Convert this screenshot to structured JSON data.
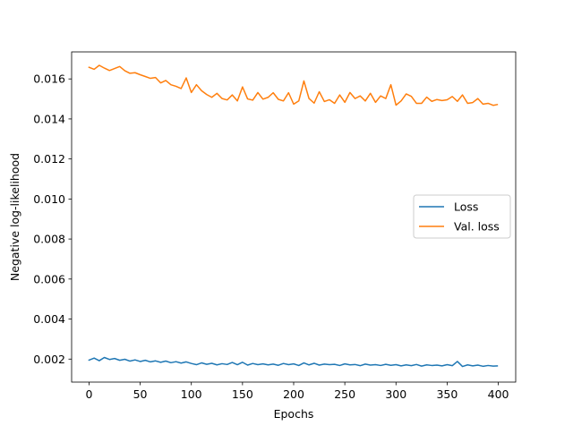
{
  "chart_data": {
    "type": "line",
    "title": "",
    "xlabel": "Epochs",
    "ylabel": "Negative log-likelihood",
    "xlim": [
      -17,
      417
    ],
    "ylim": [
      0.00085,
      0.01735
    ],
    "xticks": [
      0,
      50,
      100,
      150,
      200,
      250,
      300,
      350,
      400
    ],
    "xtick_labels": [
      "0",
      "50",
      "100",
      "150",
      "200",
      "250",
      "300",
      "350",
      "400"
    ],
    "yticks": [
      0.002,
      0.004,
      0.006,
      0.008,
      0.01,
      0.012,
      0.014,
      0.016
    ],
    "ytick_labels": [
      "0.002",
      "0.004",
      "0.006",
      "0.008",
      "0.010",
      "0.012",
      "0.014",
      "0.016"
    ],
    "grid": false,
    "legend_position": "center-right",
    "series": [
      {
        "name": "Loss",
        "color": "#1f77b4",
        "x": [
          0,
          5,
          10,
          15,
          20,
          25,
          30,
          35,
          40,
          45,
          50,
          55,
          60,
          65,
          70,
          75,
          80,
          85,
          90,
          95,
          100,
          105,
          110,
          115,
          120,
          125,
          130,
          135,
          140,
          145,
          150,
          155,
          160,
          165,
          170,
          175,
          180,
          185,
          190,
          195,
          200,
          205,
          210,
          215,
          220,
          225,
          230,
          235,
          240,
          245,
          250,
          255,
          260,
          265,
          270,
          275,
          280,
          285,
          290,
          295,
          300,
          305,
          310,
          315,
          320,
          325,
          330,
          335,
          340,
          345,
          350,
          355,
          360,
          365,
          370,
          375,
          380,
          385,
          390,
          395,
          399
        ],
        "y": [
          0.00195,
          0.00205,
          0.00192,
          0.00208,
          0.00198,
          0.00203,
          0.00194,
          0.00199,
          0.0019,
          0.00196,
          0.00188,
          0.00194,
          0.00186,
          0.00191,
          0.00184,
          0.0019,
          0.00182,
          0.00187,
          0.0018,
          0.00186,
          0.00178,
          0.00172,
          0.00181,
          0.00174,
          0.00179,
          0.00171,
          0.00177,
          0.00173,
          0.00183,
          0.00172,
          0.00184,
          0.0017,
          0.00178,
          0.00172,
          0.00176,
          0.00171,
          0.00175,
          0.00169,
          0.00178,
          0.00172,
          0.00176,
          0.00168,
          0.00181,
          0.00171,
          0.00179,
          0.0017,
          0.00175,
          0.00172,
          0.00174,
          0.00168,
          0.00176,
          0.00171,
          0.00173,
          0.00167,
          0.00175,
          0.0017,
          0.00172,
          0.00168,
          0.00174,
          0.00169,
          0.00172,
          0.00166,
          0.00171,
          0.00167,
          0.00173,
          0.00165,
          0.00171,
          0.00168,
          0.0017,
          0.00166,
          0.00172,
          0.00167,
          0.00188,
          0.00163,
          0.00171,
          0.00166,
          0.0017,
          0.00164,
          0.00168,
          0.00165,
          0.00166
        ]
      },
      {
        "name": "Val. loss",
        "color": "#ff7f0e",
        "x": [
          0,
          5,
          10,
          15,
          20,
          25,
          30,
          35,
          40,
          45,
          50,
          55,
          60,
          65,
          70,
          75,
          80,
          85,
          90,
          95,
          100,
          105,
          110,
          115,
          120,
          125,
          130,
          135,
          140,
          145,
          150,
          155,
          160,
          165,
          170,
          175,
          180,
          185,
          190,
          195,
          200,
          205,
          210,
          215,
          220,
          225,
          230,
          235,
          240,
          245,
          250,
          255,
          260,
          265,
          270,
          275,
          280,
          285,
          290,
          295,
          300,
          305,
          310,
          315,
          320,
          325,
          330,
          335,
          340,
          345,
          350,
          355,
          360,
          365,
          370,
          375,
          380,
          385,
          390,
          395,
          399
        ],
        "y": [
          0.01658,
          0.01648,
          0.01668,
          0.01654,
          0.01642,
          0.01652,
          0.01662,
          0.01641,
          0.01628,
          0.01631,
          0.01621,
          0.01612,
          0.01603,
          0.01607,
          0.0158,
          0.01592,
          0.01571,
          0.01563,
          0.01552,
          0.01605,
          0.01532,
          0.01571,
          0.01541,
          0.01522,
          0.01508,
          0.01528,
          0.01502,
          0.01495,
          0.0152,
          0.0149,
          0.0156,
          0.015,
          0.01494,
          0.01532,
          0.01499,
          0.01508,
          0.01531,
          0.01498,
          0.0149,
          0.01531,
          0.01474,
          0.0149,
          0.0159,
          0.01502,
          0.01479,
          0.01536,
          0.01487,
          0.01496,
          0.01478,
          0.0152,
          0.01483,
          0.01532,
          0.01502,
          0.01515,
          0.0149,
          0.01528,
          0.01483,
          0.01515,
          0.01502,
          0.01571,
          0.01469,
          0.0149,
          0.01525,
          0.01513,
          0.01478,
          0.01478,
          0.01509,
          0.01488,
          0.01497,
          0.01492,
          0.01496,
          0.01512,
          0.01488,
          0.0152,
          0.01478,
          0.01482,
          0.01502,
          0.01474,
          0.01478,
          0.01468,
          0.01472
        ]
      }
    ]
  }
}
